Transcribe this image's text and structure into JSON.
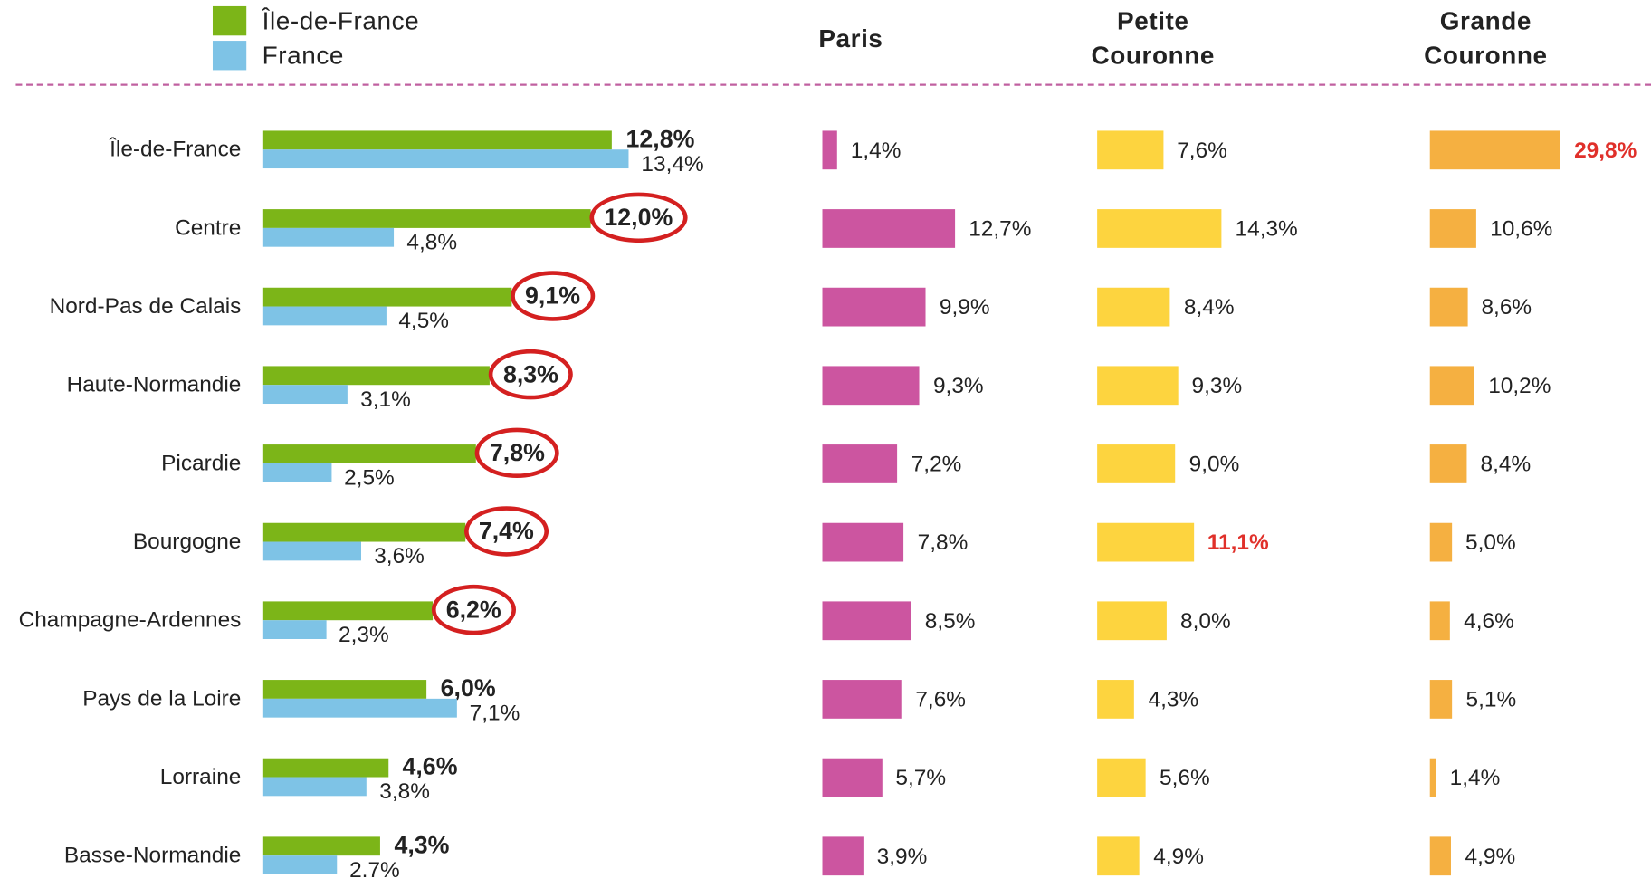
{
  "chart_data": [
    {
      "type": "bar",
      "orientation": "horizontal",
      "legend": "top-left",
      "categories": [
        "Île-de-France",
        "Centre",
        "Nord-Pas de Calais",
        "Haute-Normandie",
        "Picardie",
        "Bourgogne",
        "Champagne-Ardennes",
        "Pays de la Loire",
        "Lorraine",
        "Basse-Normandie"
      ],
      "series": [
        {
          "name": "Île-de-France",
          "color": "#7cb518",
          "circled": [
            1,
            2,
            3,
            4,
            5,
            6
          ],
          "values": [
            12.8,
            12.0,
            9.1,
            8.3,
            7.8,
            7.4,
            6.2,
            6.0,
            4.6,
            4.3
          ],
          "value_labels": [
            "12,8%",
            "12,0%",
            "9,1%",
            "8,3%",
            "7,8%",
            "7,4%",
            "6,2%",
            "6,0%",
            "4,6%",
            "4,3%"
          ]
        },
        {
          "name": "France",
          "color": "#7ec3e6",
          "values": [
            13.4,
            4.8,
            4.5,
            3.1,
            2.5,
            3.6,
            2.3,
            7.1,
            3.8,
            2.7
          ],
          "value_labels": [
            "13,4%",
            "4,8%",
            "4,5%",
            "3,1%",
            "2,5%",
            "3,6%",
            "2,3%",
            "7,1%",
            "3,8%",
            "2.7%"
          ]
        }
      ]
    },
    {
      "type": "bar",
      "orientation": "horizontal",
      "title": "Paris",
      "color": "#cc55a0",
      "values": [
        1.4,
        12.7,
        9.9,
        9.3,
        7.2,
        7.8,
        8.5,
        7.6,
        5.7,
        3.9
      ],
      "value_labels": [
        "1,4%",
        "12,7%",
        "9,9%",
        "9,3%",
        "7,2%",
        "7,8%",
        "8,5%",
        "7,6%",
        "5,7%",
        "3,9%"
      ]
    },
    {
      "type": "bar",
      "orientation": "horizontal",
      "title": "Petite Couronne",
      "color": "#fdd43f",
      "highlighted": [
        5
      ],
      "highlight_color": "#e0302a",
      "values": [
        7.6,
        14.3,
        8.4,
        9.3,
        9.0,
        11.1,
        8.0,
        4.3,
        5.6,
        4.9
      ],
      "value_labels": [
        "7,6%",
        "14,3%",
        "8,4%",
        "9,3%",
        "9,0%",
        "11,1%",
        "8,0%",
        "4,3%",
        "5,6%",
        "4,9%"
      ]
    },
    {
      "type": "bar",
      "orientation": "horizontal",
      "title": "Grande Couronne",
      "color": "#f5b041",
      "highlighted": [
        0
      ],
      "highlight_color": "#e0302a",
      "values": [
        29.8,
        10.6,
        8.6,
        10.2,
        8.4,
        5.0,
        4.6,
        5.1,
        1.4,
        4.9
      ],
      "value_labels": [
        "29,8%",
        "10,6%",
        "8,6%",
        "10,2%",
        "8,4%",
        "5,0%",
        "4,6%",
        "5,1%",
        "1,4%",
        "4,9%"
      ]
    }
  ]
}
